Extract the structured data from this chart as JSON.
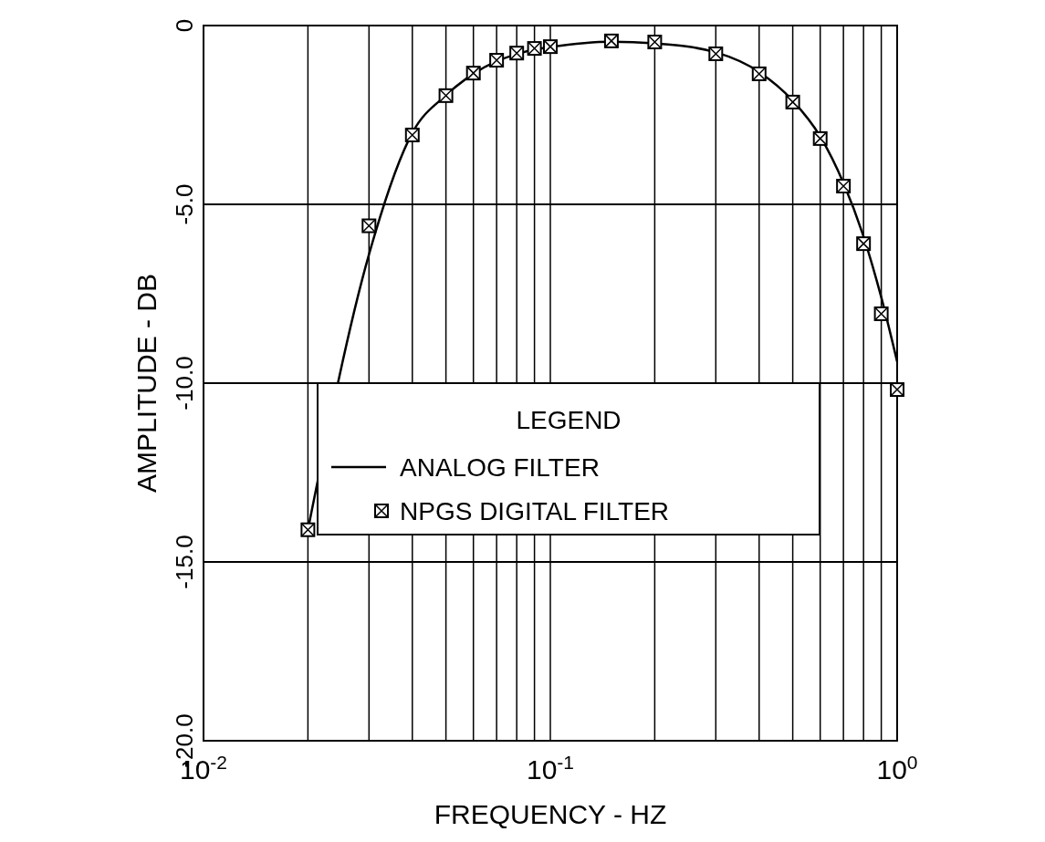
{
  "chart_data": {
    "type": "line",
    "xlabel": "FREQUENCY - HZ",
    "ylabel": "AMPLITUDE - DB",
    "legend_title": "LEGEND",
    "log": "x",
    "grid": true,
    "legend": "bottom",
    "xlim": [
      0.01,
      1
    ],
    "ylim": [
      -20,
      0
    ],
    "xticks": [
      {
        "value": 0.01,
        "label": "10$^{-2}$"
      },
      {
        "value": 0.02,
        "label": null
      },
      {
        "value": 0.03,
        "label": null
      },
      {
        "value": 0.04,
        "label": null
      },
      {
        "value": 0.05,
        "label": null
      },
      {
        "value": 0.06,
        "label": null
      },
      {
        "value": 0.07,
        "label": null
      },
      {
        "value": 0.08,
        "label": null
      },
      {
        "value": 0.09,
        "label": null
      },
      {
        "value": 0.1,
        "label": "10$^{-1}$"
      },
      {
        "value": 0.2,
        "label": null
      },
      {
        "value": 0.3,
        "label": null
      },
      {
        "value": 0.4,
        "label": null
      },
      {
        "value": 0.5,
        "label": null
      },
      {
        "value": 0.6,
        "label": null
      },
      {
        "value": 0.7,
        "label": null
      },
      {
        "value": 0.8,
        "label": null
      },
      {
        "value": 0.9,
        "label": null
      },
      {
        "value": 1,
        "label": "10$^{0}$"
      }
    ],
    "yticks": [
      {
        "value": -20,
        "label": "-20.0"
      },
      {
        "value": -15,
        "label": "-15.0"
      },
      {
        "value": -10,
        "label": "-10.0"
      },
      {
        "value": -5,
        "label": "-5.0"
      },
      0
    ],
    "series": [
      {
        "name": "ANALOG FILTER",
        "color": "#000000",
        "line_style": "solid",
        "x": [
          0.02,
          0.03,
          0.04,
          0.05,
          0.06,
          0.07,
          0.08,
          0.09,
          0.1,
          0.15,
          0.2,
          0.3,
          0.4,
          0.5,
          0.6,
          0.7,
          0.8,
          0.9,
          1
        ],
        "values": [
          -14.1,
          -6.4,
          -3.0,
          -1.95,
          -1.35,
          -1.0,
          -0.8,
          -0.67,
          -0.6,
          -0.45,
          -0.5,
          -0.75,
          -1.3,
          -2.1,
          -3.1,
          -4.4,
          -5.9,
          -7.6,
          -9.4
        ]
      },
      {
        "name": "NPGS DIGITAL FILTER",
        "type": "scatter",
        "color": "#000000",
        "marker": "square",
        "x": [
          0.02,
          0.03,
          0.04,
          0.05,
          0.06,
          0.07,
          0.08,
          0.09,
          0.1,
          0.15,
          0.2,
          0.3,
          0.4,
          0.5,
          0.6,
          0.7,
          0.8,
          0.9,
          1
        ],
        "values": [
          -14.1,
          -5.6,
          -3.06,
          -1.96,
          -1.33,
          -0.97,
          -0.77,
          -0.64,
          -0.59,
          -0.43,
          -0.46,
          -0.79,
          -1.35,
          -2.14,
          -3.16,
          -4.49,
          -6.1,
          -8.06,
          -10.18
        ]
      }
    ]
  }
}
